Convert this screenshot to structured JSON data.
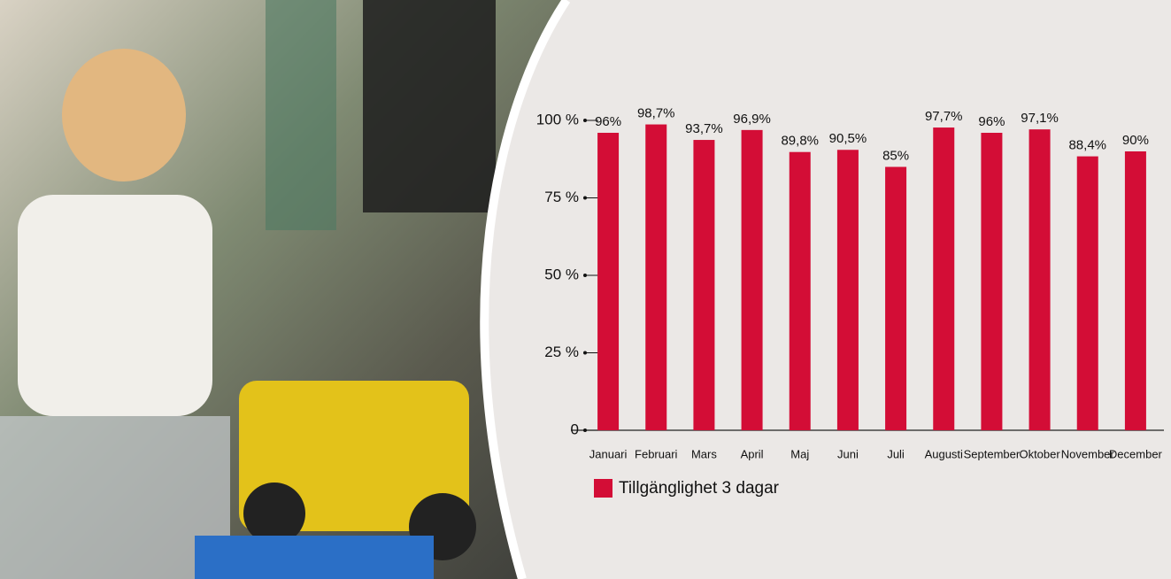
{
  "chart_data": {
    "type": "bar",
    "categories": [
      "Januari",
      "Februari",
      "Mars",
      "April",
      "Maj",
      "Juni",
      "Juli",
      "Augusti",
      "September",
      "Oktober",
      "November",
      "December"
    ],
    "series": [
      {
        "name": "Tillgänglighet 3 dagar",
        "color": "#d30d36",
        "values": [
          96,
          98.7,
          93.7,
          96.9,
          89.8,
          90.5,
          85,
          97.7,
          96,
          97.1,
          88.4,
          90
        ],
        "value_labels": [
          "96%",
          "98,7%",
          "93,7%",
          "96,9%",
          "89,8%",
          "90,5%",
          "85%",
          "97,7%",
          "96%",
          "97,1%",
          "88,4%",
          "90%"
        ]
      }
    ],
    "ylim": [
      0,
      100
    ],
    "yticks": [
      0,
      {
        "value": 25,
        "label": "25 %"
      },
      {
        "value": 50,
        "label": "50 %"
      },
      {
        "value": 75,
        "label": "75 %"
      },
      {
        "value": 100,
        "label": "100 %"
      }
    ]
  }
}
